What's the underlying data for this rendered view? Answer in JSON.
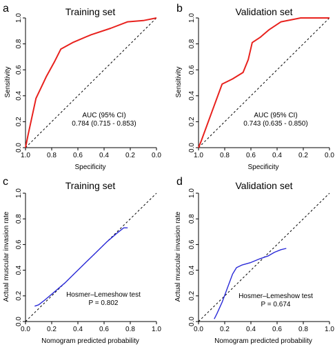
{
  "figure": {
    "panels": [
      {
        "letter": "a",
        "title": "Training set",
        "xlabel": "Specificity",
        "ylabel": "Sensitivity",
        "annotation_line1": "AUC (95% CI)",
        "annotation_line2": "0.784 (0.715 - 0.853)"
      },
      {
        "letter": "b",
        "title": "Validation set",
        "xlabel": "Specificity",
        "ylabel": "Sensitivity",
        "annotation_line1": "AUC (95% CI)",
        "annotation_line2": "0.743 (0.635 - 0.850)"
      },
      {
        "letter": "c",
        "title": "Training set",
        "xlabel": "Nomogram predicted probability",
        "ylabel": "Actual  muscular invasion rate",
        "annotation_line1": "Hosmer–Lemeshow test",
        "annotation_line2": "P = 0.802"
      },
      {
        "letter": "d",
        "title": "Validation set",
        "xlabel": "Nomogram predicted probability",
        "ylabel": "Actual  muscular invasion rate",
        "annotation_line1": "Hosmer–Lemeshow test",
        "annotation_line2": "P = 0.674"
      }
    ]
  },
  "chart_data": [
    {
      "type": "line",
      "title": "Training set",
      "xlabel": "Specificity",
      "ylabel": "Sensitivity",
      "x_reversed": true,
      "xlim": [
        1.0,
        0.0
      ],
      "ylim": [
        0.0,
        1.0
      ],
      "xticks": [
        "1.0",
        "0.8",
        "0.6",
        "0.4",
        "0.2",
        "0.0"
      ],
      "yticks": [
        "0.0",
        "0.2",
        "0.4",
        "0.6",
        "0.8",
        "1.0"
      ],
      "reference_line": "diagonal-dashed",
      "series": [
        {
          "color": "#e8211d",
          "x": [
            1.0,
            0.98,
            0.92,
            0.84,
            0.78,
            0.73,
            0.64,
            0.5,
            0.35,
            0.22,
            0.1,
            0.0
          ],
          "y": [
            0.0,
            0.1,
            0.38,
            0.55,
            0.66,
            0.76,
            0.81,
            0.87,
            0.92,
            0.97,
            0.98,
            1.0
          ]
        }
      ]
    },
    {
      "type": "line",
      "title": "Validation set",
      "xlabel": "Specificity",
      "ylabel": "Sensitivity",
      "x_reversed": true,
      "xlim": [
        1.0,
        0.0
      ],
      "ylim": [
        0.0,
        1.0
      ],
      "xticks": [
        "1.0",
        "0.8",
        "0.6",
        "0.4",
        "0.2",
        "0.0"
      ],
      "yticks": [
        "0.0",
        "0.2",
        "0.4",
        "0.6",
        "0.8",
        "1.0"
      ],
      "reference_line": "diagonal-dashed",
      "series": [
        {
          "color": "#e8211d",
          "x": [
            1.0,
            0.98,
            0.9,
            0.82,
            0.74,
            0.66,
            0.62,
            0.59,
            0.53,
            0.46,
            0.37,
            0.22,
            0.1,
            0.0
          ],
          "y": [
            0.0,
            0.05,
            0.27,
            0.49,
            0.53,
            0.58,
            0.68,
            0.81,
            0.85,
            0.91,
            0.97,
            1.0,
            1.0,
            1.0
          ]
        }
      ]
    },
    {
      "type": "line",
      "title": "Training set",
      "xlabel": "Nomogram predicted probability",
      "ylabel": "Actual  muscular invasion rate",
      "xlim": [
        0.0,
        1.0
      ],
      "ylim": [
        0.0,
        1.0
      ],
      "xticks": [
        "0.0",
        "0.2",
        "0.4",
        "0.6",
        "0.8",
        "1.0"
      ],
      "yticks": [
        "0.0",
        "0.2",
        "0.4",
        "0.6",
        "0.8",
        "1.0"
      ],
      "reference_line": "diagonal-dashed",
      "series": [
        {
          "color": "#2a2ad8",
          "x": [
            0.07,
            0.1,
            0.15,
            0.22,
            0.3,
            0.38,
            0.46,
            0.54,
            0.62,
            0.7,
            0.75,
            0.78
          ],
          "y": [
            0.12,
            0.13,
            0.17,
            0.23,
            0.3,
            0.38,
            0.46,
            0.54,
            0.62,
            0.69,
            0.73,
            0.73
          ]
        }
      ]
    },
    {
      "type": "line",
      "title": "Validation set",
      "xlabel": "Nomogram predicted probability",
      "ylabel": "Actual  muscular invasion rate",
      "xlim": [
        0.0,
        1.0
      ],
      "ylim": [
        0.0,
        1.0
      ],
      "xticks": [
        "0.0",
        "0.2",
        "0.4",
        "0.6",
        "0.8",
        "1.0"
      ],
      "yticks": [
        "0.0",
        "0.2",
        "0.4",
        "0.6",
        "0.8",
        "1.0"
      ],
      "reference_line": "diagonal-dashed",
      "series": [
        {
          "color": "#2a2ad8",
          "x": [
            0.12,
            0.14,
            0.18,
            0.22,
            0.26,
            0.29,
            0.33,
            0.4,
            0.47,
            0.53,
            0.58,
            0.63,
            0.67
          ],
          "y": [
            0.02,
            0.06,
            0.15,
            0.26,
            0.37,
            0.42,
            0.44,
            0.46,
            0.49,
            0.51,
            0.54,
            0.56,
            0.57
          ]
        }
      ]
    }
  ]
}
